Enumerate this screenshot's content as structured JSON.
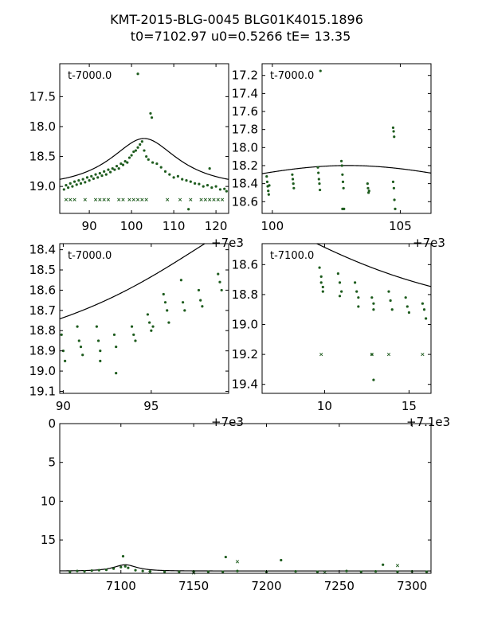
{
  "figure": {
    "title_line1": "KMT-2015-BLG-0045 BLG01K4015.1896",
    "title_line2": "t0=7102.97 u0=0.5266 tE=  13.35",
    "colors": {
      "points": "#1e5c1e",
      "model": "#000000",
      "frame": "#000000"
    }
  },
  "chart_data": [
    {
      "type": "scatter",
      "panel_label": "t-7000.0",
      "xlim": [
        83,
        123
      ],
      "ylim": [
        19.45,
        16.95
      ],
      "xticks": [
        90,
        100,
        110,
        120
      ],
      "yticks": [
        17.5,
        18.0,
        18.5,
        19.0
      ],
      "x_offset_label": "+7e3",
      "model_type": "pspl",
      "series": [
        {
          "marker": "dot",
          "points": [
            [
              84,
              19.05
            ],
            [
              84.5,
              18.98
            ],
            [
              85,
              19.02
            ],
            [
              85.5,
              18.95
            ],
            [
              86,
              19.0
            ],
            [
              86.5,
              18.92
            ],
            [
              87,
              18.97
            ],
            [
              87.5,
              18.9
            ],
            [
              88,
              18.95
            ],
            [
              88.5,
              18.88
            ],
            [
              89,
              18.93
            ],
            [
              89.5,
              18.85
            ],
            [
              90,
              18.9
            ],
            [
              90.5,
              18.83
            ],
            [
              91,
              18.87
            ],
            [
              91.5,
              18.8
            ],
            [
              92,
              18.85
            ],
            [
              92.5,
              18.78
            ],
            [
              93,
              18.82
            ],
            [
              93.5,
              18.75
            ],
            [
              94,
              18.8
            ],
            [
              94.5,
              18.72
            ],
            [
              95,
              18.76
            ],
            [
              95.5,
              18.7
            ],
            [
              96,
              18.72
            ],
            [
              96.5,
              18.66
            ],
            [
              97,
              18.7
            ],
            [
              97.5,
              18.62
            ],
            [
              98,
              18.64
            ],
            [
              98.5,
              18.58
            ],
            [
              99,
              18.6
            ],
            [
              99.5,
              18.52
            ],
            [
              100,
              18.48
            ],
            [
              100.5,
              18.42
            ],
            [
              101,
              18.4
            ],
            [
              101.5,
              18.35
            ],
            [
              102,
              18.3
            ],
            [
              102.5,
              18.25
            ],
            [
              103,
              18.4
            ],
            [
              103.5,
              18.5
            ],
            [
              104,
              18.55
            ],
            [
              104.5,
              17.78
            ],
            [
              104.8,
              17.85
            ],
            [
              101.5,
              17.12
            ],
            [
              105,
              18.6
            ],
            [
              106,
              18.62
            ],
            [
              107,
              18.68
            ],
            [
              108,
              18.75
            ],
            [
              109,
              18.8
            ],
            [
              110,
              18.85
            ],
            [
              111,
              18.83
            ],
            [
              112,
              18.88
            ],
            [
              113,
              18.9
            ],
            [
              114,
              18.92
            ],
            [
              115,
              18.95
            ],
            [
              116,
              18.96
            ],
            [
              117,
              19.0
            ],
            [
              118,
              18.98
            ],
            [
              119,
              19.02
            ],
            [
              120,
              19.0
            ],
            [
              121,
              19.05
            ],
            [
              122,
              19.04
            ],
            [
              122.5,
              19.08
            ],
            [
              113.5,
              19.38
            ],
            [
              118.5,
              18.7
            ]
          ]
        },
        {
          "marker": "x",
          "points": [
            [
              84.5,
              19.22
            ],
            [
              85.5,
              19.22
            ],
            [
              86.5,
              19.22
            ],
            [
              89,
              19.22
            ],
            [
              91.5,
              19.22
            ],
            [
              92.5,
              19.22
            ],
            [
              93.5,
              19.22
            ],
            [
              94.5,
              19.22
            ],
            [
              97,
              19.22
            ],
            [
              98,
              19.22
            ],
            [
              99.5,
              19.22
            ],
            [
              100.5,
              19.22
            ],
            [
              101.5,
              19.22
            ],
            [
              102.5,
              19.22
            ],
            [
              103.5,
              19.22
            ],
            [
              108.5,
              19.22
            ],
            [
              111.5,
              19.22
            ],
            [
              114,
              19.22
            ],
            [
              116.5,
              19.22
            ],
            [
              117.5,
              19.22
            ],
            [
              118.5,
              19.22
            ],
            [
              119.5,
              19.22
            ],
            [
              120.5,
              19.22
            ],
            [
              121.5,
              19.22
            ]
          ]
        }
      ]
    },
    {
      "type": "scatter",
      "panel_label": "t-7000.0",
      "xlim": [
        99.6,
        106.2
      ],
      "ylim": [
        18.73,
        17.07
      ],
      "xticks": [
        100,
        105
      ],
      "yticks": [
        17.2,
        17.4,
        17.6,
        17.8,
        18.0,
        18.2,
        18.4,
        18.6
      ],
      "x_offset_label": "+7e3",
      "model_type": "pspl",
      "series": [
        {
          "marker": "dot",
          "points": [
            [
              99.78,
              18.32
            ],
            [
              99.8,
              18.38
            ],
            [
              99.82,
              18.43
            ],
            [
              99.84,
              18.48
            ],
            [
              99.86,
              18.52
            ],
            [
              99.88,
              18.42
            ],
            [
              100.78,
              18.3
            ],
            [
              100.8,
              18.35
            ],
            [
              100.82,
              18.4
            ],
            [
              100.84,
              18.45
            ],
            [
              101.78,
              18.22
            ],
            [
              101.8,
              18.28
            ],
            [
              101.82,
              18.35
            ],
            [
              101.84,
              18.4
            ],
            [
              101.86,
              18.47
            ],
            [
              101.88,
              17.15
            ],
            [
              102.7,
              18.15
            ],
            [
              102.72,
              18.2
            ],
            [
              102.74,
              18.3
            ],
            [
              102.76,
              18.38
            ],
            [
              102.78,
              18.45
            ],
            [
              102.8,
              18.68
            ],
            [
              102.74,
              18.68
            ],
            [
              103.72,
              18.4
            ],
            [
              103.74,
              18.45
            ],
            [
              103.76,
              18.5
            ],
            [
              103.78,
              18.48
            ],
            [
              104.72,
              17.78
            ],
            [
              104.74,
              17.82
            ],
            [
              104.76,
              17.88
            ],
            [
              104.72,
              18.38
            ],
            [
              104.75,
              18.45
            ],
            [
              104.77,
              18.58
            ],
            [
              104.8,
              18.68
            ]
          ]
        },
        {
          "marker": "x",
          "points": []
        }
      ]
    },
    {
      "type": "scatter",
      "panel_label": "t-7000.0",
      "xlim": [
        89.8,
        99.4
      ],
      "ylim": [
        19.11,
        18.37
      ],
      "xticks": [
        90,
        95
      ],
      "yticks": [
        18.4,
        18.5,
        18.6,
        18.7,
        18.8,
        18.9,
        19.0,
        19.1
      ],
      "x_offset_label": "+7e3",
      "model_type": "pspl",
      "series": [
        {
          "marker": "dot",
          "points": [
            [
              89.9,
              18.82
            ],
            [
              90,
              18.9
            ],
            [
              90.1,
              18.95
            ],
            [
              90.8,
              18.78
            ],
            [
              90.9,
              18.85
            ],
            [
              91,
              18.88
            ],
            [
              91.1,
              18.92
            ],
            [
              91.9,
              18.78
            ],
            [
              92,
              18.85
            ],
            [
              92.1,
              18.9
            ],
            [
              92.1,
              18.95
            ],
            [
              92.9,
              18.82
            ],
            [
              93,
              18.88
            ],
            [
              93,
              19.01
            ],
            [
              93.9,
              18.78
            ],
            [
              94,
              18.82
            ],
            [
              94.1,
              18.85
            ],
            [
              94.8,
              18.72
            ],
            [
              94.9,
              18.76
            ],
            [
              95,
              18.8
            ],
            [
              95.1,
              18.78
            ],
            [
              95.7,
              18.62
            ],
            [
              95.8,
              18.66
            ],
            [
              95.9,
              18.7
            ],
            [
              96,
              18.76
            ],
            [
              96.7,
              18.55
            ],
            [
              96.8,
              18.66
            ],
            [
              96.9,
              18.7
            ],
            [
              97.7,
              18.6
            ],
            [
              97.8,
              18.65
            ],
            [
              97.9,
              18.68
            ],
            [
              98.8,
              18.52
            ],
            [
              98.9,
              18.56
            ],
            [
              99,
              18.6
            ]
          ]
        },
        {
          "marker": "x",
          "points": []
        }
      ]
    },
    {
      "type": "scatter",
      "panel_label": "t-7100.0",
      "xlim": [
        6.3,
        16.3
      ],
      "ylim": [
        19.46,
        18.46
      ],
      "xticks": [
        10,
        15
      ],
      "yticks": [
        18.6,
        18.8,
        19.0,
        19.2,
        19.4
      ],
      "x_offset_label": "+7.1e3",
      "model_type": "pspl",
      "series": [
        {
          "marker": "dot",
          "points": [
            [
              9.7,
              18.62
            ],
            [
              9.8,
              18.68
            ],
            [
              9.9,
              18.75
            ],
            [
              9.8,
              18.72
            ],
            [
              9.9,
              18.78
            ],
            [
              10.8,
              18.66
            ],
            [
              10.9,
              18.72
            ],
            [
              11,
              18.78
            ],
            [
              10.9,
              18.81
            ],
            [
              11.8,
              18.72
            ],
            [
              11.9,
              18.78
            ],
            [
              12,
              18.82
            ],
            [
              12,
              18.88
            ],
            [
              12.8,
              18.82
            ],
            [
              12.9,
              18.86
            ],
            [
              12.9,
              18.9
            ],
            [
              12.8,
              19.2
            ],
            [
              13.8,
              18.78
            ],
            [
              13.9,
              18.84
            ],
            [
              14,
              18.9
            ],
            [
              14.8,
              18.82
            ],
            [
              14.9,
              18.88
            ],
            [
              15,
              18.92
            ],
            [
              15.8,
              18.86
            ],
            [
              15.9,
              18.9
            ],
            [
              16,
              18.96
            ],
            [
              12.9,
              19.37
            ]
          ]
        },
        {
          "marker": "x",
          "points": [
            [
              9.8,
              19.2
            ],
            [
              12.8,
              19.2
            ],
            [
              13.8,
              19.2
            ],
            [
              15.8,
              19.2
            ]
          ]
        }
      ]
    },
    {
      "type": "scatter",
      "panel_label": "",
      "xlim": [
        7058,
        7313
      ],
      "ylim": [
        19.3,
        0
      ],
      "xticks": [
        7100,
        7150,
        7200,
        7250,
        7300
      ],
      "yticks": [
        0,
        5,
        10,
        15
      ],
      "x_offset_label": "",
      "model_type": "pspl",
      "series": [
        {
          "marker": "dot",
          "points": [
            [
              7065,
              19.1
            ],
            [
              7070,
              19.0
            ],
            [
              7075,
              19.05
            ],
            [
              7080,
              18.95
            ],
            [
              7085,
              18.9
            ],
            [
              7090,
              18.85
            ],
            [
              7095,
              18.7
            ],
            [
              7100,
              18.5
            ],
            [
              7101.5,
              17.1
            ],
            [
              7103,
              18.4
            ],
            [
              7105,
              18.6
            ],
            [
              7110,
              18.9
            ],
            [
              7115,
              19.0
            ],
            [
              7120,
              19.05
            ],
            [
              7130,
              19.1
            ],
            [
              7140,
              19.1
            ],
            [
              7150,
              19.05
            ],
            [
              7160,
              19.1
            ],
            [
              7170,
              19.1
            ],
            [
              7172,
              17.2
            ],
            [
              7180,
              19.0
            ],
            [
              7200,
              19.1
            ],
            [
              7210,
              17.6
            ],
            [
              7220,
              19.05
            ],
            [
              7235,
              19.1
            ],
            [
              7255,
              19.0
            ],
            [
              7265,
              19.1
            ],
            [
              7275,
              19.05
            ],
            [
              7280,
              18.2
            ],
            [
              7290,
              19.1
            ],
            [
              7300,
              19.05
            ],
            [
              7310,
              19.1
            ]
          ]
        },
        {
          "marker": "x",
          "points": [
            [
              7120,
              19.2
            ],
            [
              7150,
              19.25
            ],
            [
              7180,
              17.8
            ],
            [
              7240,
              19.2
            ],
            [
              7290,
              18.3
            ]
          ]
        }
      ]
    }
  ]
}
